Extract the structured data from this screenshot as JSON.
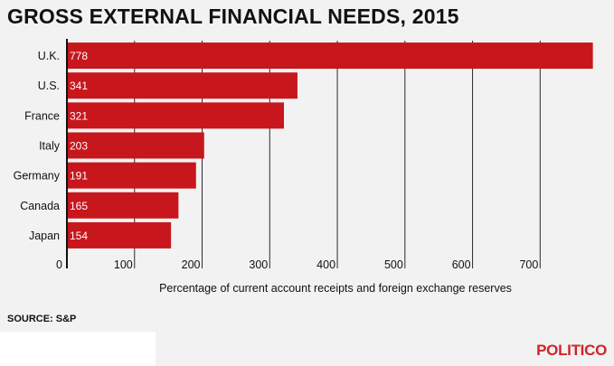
{
  "title": "GROSS EXTERNAL FINANCIAL NEEDS, 2015",
  "source": "SOURCE: S&P",
  "logo": "POLITICO",
  "colors": {
    "bar": "#c8161d",
    "background": "#f2f2f2",
    "gridline": "#2a2a2a",
    "logo": "#d0242a"
  },
  "chart_data": {
    "type": "bar",
    "orientation": "horizontal",
    "categories": [
      "U.K.",
      "U.S.",
      "France",
      "Italy",
      "Germany",
      "Canada",
      "Japan"
    ],
    "values": [
      778,
      341,
      321,
      203,
      191,
      165,
      154
    ],
    "data_labels": [
      "778",
      "341",
      "321",
      "203",
      "191",
      "165",
      "154"
    ],
    "xlabel": "Percentage of current account receipts and foreign exchange reserves",
    "x_ticks": [
      0,
      100,
      200,
      300,
      400,
      500,
      600,
      700
    ],
    "xlim": [
      0,
      780
    ],
    "grid": true,
    "legend": "none"
  }
}
